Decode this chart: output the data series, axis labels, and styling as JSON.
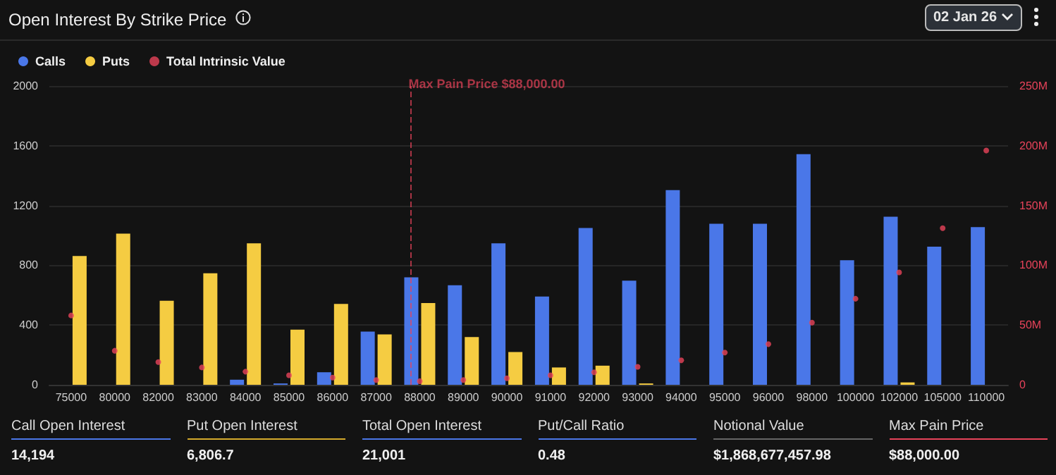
{
  "chart_data": {
    "type": "bar",
    "title": "Open Interest By Strike Price",
    "categories": [
      "75000",
      "80000",
      "82000",
      "83000",
      "84000",
      "85000",
      "86000",
      "87000",
      "88000",
      "89000",
      "90000",
      "91000",
      "92000",
      "93000",
      "94000",
      "95000",
      "96000",
      "98000",
      "100000",
      "102000",
      "105000",
      "110000"
    ],
    "series": [
      {
        "name": "Calls",
        "color": "#4a77e8",
        "values": [
          0,
          0,
          0,
          0,
          34,
          9,
          84,
          356,
          719,
          666,
          947,
          591,
          1050,
          697,
          1303,
          1078,
          1078,
          1544,
          834,
          1125,
          925,
          1056
        ]
      },
      {
        "name": "Puts",
        "color": "#f5cc42",
        "values": [
          862,
          1012,
          562,
          747,
          947,
          369,
          541,
          337,
          547,
          319,
          219,
          116,
          128,
          9,
          0,
          0,
          0,
          0,
          0,
          16,
          0,
          0
        ]
      },
      {
        "name": "Total Intrinsic Value",
        "color": "#e8435a",
        "type": "scatter",
        "axis": "y2",
        "values": [
          58,
          28.5,
          19,
          14.5,
          11,
          8,
          6,
          4,
          3,
          4,
          5.5,
          8,
          10.5,
          15,
          20.5,
          27,
          34,
          52,
          72,
          94,
          131,
          196
        ]
      }
    ],
    "ylim": [
      0,
      2000
    ],
    "yticks": [
      0,
      400,
      800,
      1200,
      1600,
      2000
    ],
    "y2lim": [
      0,
      250
    ],
    "y2ticks": [
      {
        "value": 0,
        "label": "0"
      },
      {
        "value": 50,
        "label": "50M"
      },
      {
        "value": 100,
        "label": "100M"
      },
      {
        "value": 150,
        "label": "150M"
      },
      {
        "value": 200,
        "label": "200M"
      },
      {
        "value": 250,
        "label": "250M"
      }
    ],
    "ref_lines": [
      {
        "axis": "x",
        "value": "88000",
        "label": "Max Pain Price $88,000.00",
        "color": "#e8435a",
        "line_style": "dashed"
      }
    ],
    "annotations": [
      "02 Jan 26",
      "Call Open Interest",
      "14,194",
      "Put Open Interest",
      "6,806.7",
      "Total Open Interest",
      "21,001",
      "Put/Call Ratio",
      "0.48",
      "Notional Value",
      "$1,868,677,457.98",
      "Max Pain Price",
      "$88,000.00"
    ],
    "grid": "y",
    "legend": "top left",
    "marker": "circle"
  }
}
